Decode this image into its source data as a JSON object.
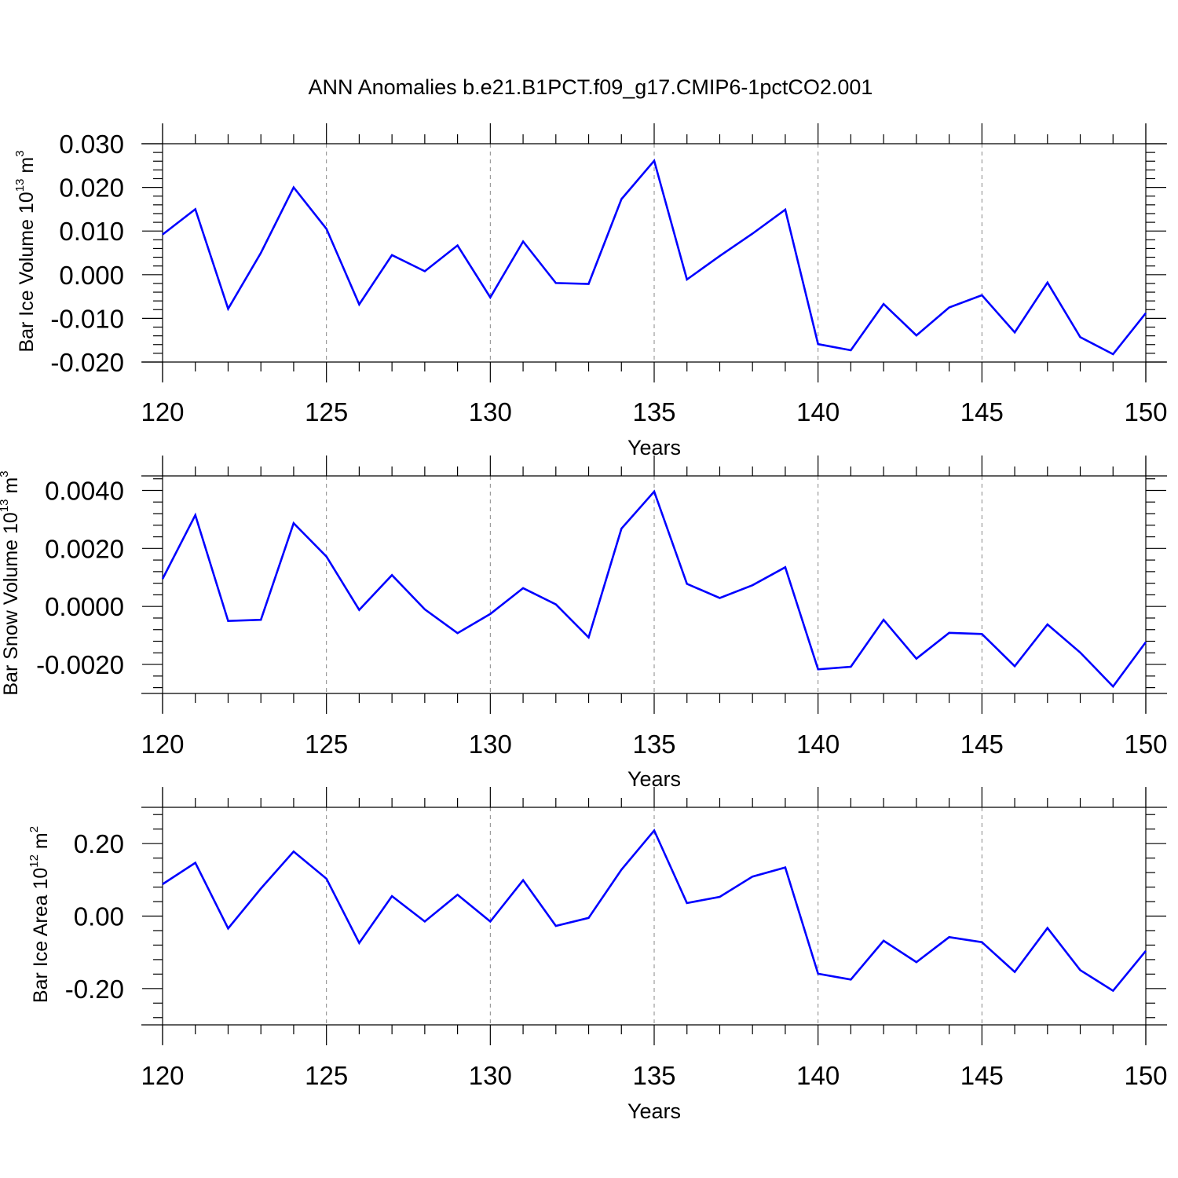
{
  "title": "ANN Anomalies b.e21.B1PCT.f09_g17.CMIP6-1pctCO2.001",
  "colors": {
    "line": "#0000ff",
    "axis": "#000000",
    "grid": "#888888"
  },
  "chart_data": [
    {
      "type": "line",
      "ylabel": {
        "text": "Bar Ice Volume 10",
        "sup1": "13",
        "unit": " m",
        "sup2": "3"
      },
      "xlabel": "Years",
      "xlim": [
        120,
        150
      ],
      "ylim": [
        -0.02,
        0.03
      ],
      "xticks": [
        120,
        125,
        130,
        135,
        140,
        145,
        150
      ],
      "xtick_labels": [
        "120",
        "125",
        "130",
        "135",
        "140",
        "145",
        "150"
      ],
      "yticks": [
        -0.02,
        -0.01,
        0.0,
        0.01,
        0.02,
        0.03
      ],
      "ytick_labels": [
        "-0.020",
        "-0.010",
        "0.000",
        "0.010",
        "0.020",
        "0.030"
      ],
      "grid": "vertical dashed at major x ticks",
      "series": [
        {
          "x": [
            120,
            121,
            122,
            123,
            124,
            125,
            126,
            127,
            128,
            129,
            130,
            131,
            132,
            133,
            134,
            135,
            136,
            137,
            138,
            139,
            140,
            141,
            142,
            143,
            144,
            145,
            146,
            147,
            148,
            149,
            150
          ],
          "values": [
            0.0092,
            0.015,
            -0.0078,
            0.005,
            0.02,
            0.0105,
            -0.0068,
            0.0045,
            0.0008,
            0.0067,
            -0.0052,
            0.0076,
            -0.0019,
            -0.0021,
            0.0173,
            0.0261,
            -0.0011,
            0.0043,
            0.0094,
            0.0149,
            -0.0159,
            -0.0173,
            -0.0067,
            -0.0139,
            -0.0075,
            -0.0047,
            -0.0132,
            -0.0018,
            -0.0143,
            -0.0182,
            -0.0088
          ]
        }
      ]
    },
    {
      "type": "line",
      "ylabel": {
        "text": "Bar Snow Volume 10",
        "sup1": "13",
        "unit": " m",
        "sup2": "3"
      },
      "xlabel": "Years",
      "xlim": [
        120,
        150
      ],
      "ylim": [
        -0.003,
        0.0045
      ],
      "xticks": [
        120,
        125,
        130,
        135,
        140,
        145,
        150
      ],
      "xtick_labels": [
        "120",
        "125",
        "130",
        "135",
        "140",
        "145",
        "150"
      ],
      "yticks": [
        -0.002,
        0.0,
        0.002,
        0.004
      ],
      "ytick_labels": [
        "-0.0020",
        "0.0000",
        "0.0020",
        "0.0040"
      ],
      "grid": "vertical dashed at major x ticks",
      "series": [
        {
          "x": [
            120,
            121,
            122,
            123,
            124,
            125,
            126,
            127,
            128,
            129,
            130,
            131,
            132,
            133,
            134,
            135,
            136,
            137,
            138,
            139,
            140,
            141,
            142,
            143,
            144,
            145,
            146,
            147,
            148,
            149,
            150
          ],
          "values": [
            0.00095,
            0.00315,
            -0.0005,
            -0.00046,
            0.00287,
            0.00172,
            -0.00012,
            0.00108,
            -0.0001,
            -0.00092,
            -0.00026,
            0.00063,
            7e-05,
            -0.00107,
            0.00268,
            0.00396,
            0.00078,
            0.00029,
            0.00073,
            0.00135,
            -0.00217,
            -0.00208,
            -0.00046,
            -0.0018,
            -0.00091,
            -0.00095,
            -0.00206,
            -0.00062,
            -0.00159,
            -0.00276,
            -0.00123
          ]
        }
      ]
    },
    {
      "type": "line",
      "ylabel": {
        "text": "Bar Ice Area 10",
        "sup1": "12",
        "unit": " m",
        "sup2": "2"
      },
      "xlabel": "Years",
      "xlim": [
        120,
        150
      ],
      "ylim": [
        -0.3,
        0.3
      ],
      "xticks": [
        120,
        125,
        130,
        135,
        140,
        145,
        150
      ],
      "xtick_labels": [
        "120",
        "125",
        "130",
        "135",
        "140",
        "145",
        "150"
      ],
      "yticks": [
        -0.2,
        0.0,
        0.2
      ],
      "ytick_labels": [
        "-0.20",
        "0.00",
        "0.20"
      ],
      "grid": "vertical dashed at major x ticks",
      "series": [
        {
          "x": [
            120,
            121,
            122,
            123,
            124,
            125,
            126,
            127,
            128,
            129,
            130,
            131,
            132,
            133,
            134,
            135,
            136,
            137,
            138,
            139,
            140,
            141,
            142,
            143,
            144,
            145,
            146,
            147,
            148,
            149,
            150
          ],
          "values": [
            0.088,
            0.147,
            -0.034,
            0.076,
            0.178,
            0.103,
            -0.074,
            0.055,
            -0.015,
            0.059,
            -0.015,
            0.099,
            -0.027,
            -0.005,
            0.128,
            0.236,
            0.036,
            0.053,
            0.109,
            0.134,
            -0.159,
            -0.175,
            -0.068,
            -0.127,
            -0.058,
            -0.072,
            -0.154,
            -0.033,
            -0.149,
            -0.206,
            -0.096
          ]
        }
      ]
    }
  ]
}
